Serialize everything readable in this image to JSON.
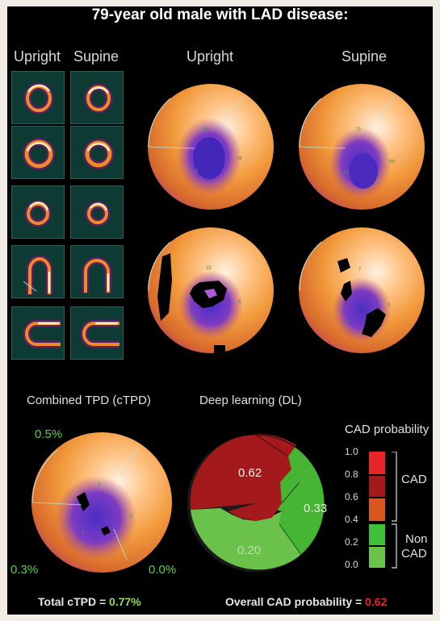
{
  "title": "79-year old male with LAD disease:",
  "slice_headers": {
    "upright": "Upright",
    "supine": "Supine"
  },
  "map_headers": {
    "upright": "Upright",
    "supine": "Supine"
  },
  "ctpd": {
    "title": "Combined TPD (cTPD)",
    "top_value": "0.5%",
    "left_value": "0.3%",
    "right_value": "0.0%",
    "total_label": "Total cTPD = ",
    "total_value": "0.77%"
  },
  "dl": {
    "title": "Deep learning (DL)",
    "overall_label": "Overall CAD probability = ",
    "overall_value": "0.62",
    "segments": [
      {
        "label": "0.62",
        "value": 0.62,
        "color": "#a3191c"
      },
      {
        "label": "0.33",
        "value": 0.33,
        "color": "#45b533"
      },
      {
        "label": "0.20",
        "value": 0.2,
        "color": "#6ac24b"
      }
    ]
  },
  "probability_scale": {
    "title": "CAD probability",
    "ticks": [
      "1.0",
      "0.8",
      "0.6",
      "0.4",
      "0.2",
      "0.0"
    ],
    "cad_label": "CAD",
    "noncad_label_line1": "Non",
    "noncad_label_line2": "CAD",
    "colors": [
      "#e8262a",
      "#a3191c",
      "#d8571e",
      "#3fbf3a",
      "#6ac24b"
    ]
  },
  "colors": {
    "background": "#000000",
    "cad_red": "#e8222a",
    "green_value": "#8dde5a"
  }
}
